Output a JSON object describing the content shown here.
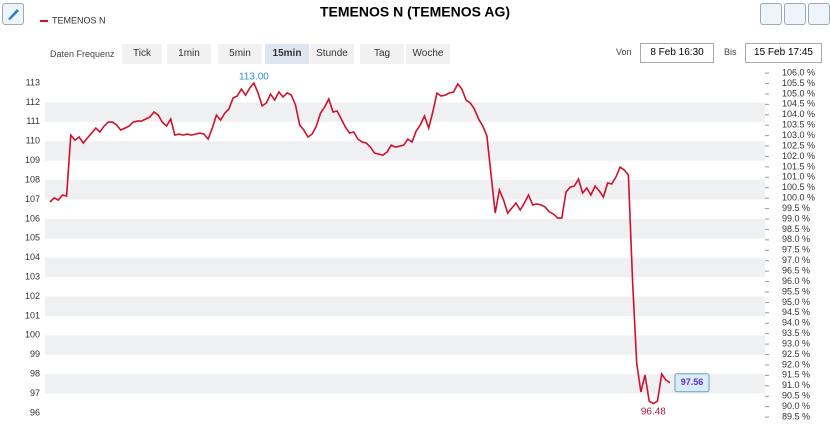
{
  "toolbar": {
    "frequency_label": "Daten Frequenz",
    "frequencies": [
      "Tick",
      "1min",
      "5min",
      "15min",
      "Stunde",
      "Tag",
      "Woche"
    ],
    "active": "15min",
    "from_label": "Von",
    "from": "8 Feb 16:30",
    "to_label": "Bis",
    "to": "15 Feb 17:45"
  },
  "chart_data": {
    "type": "line",
    "title": "TEMENOS N (TEMENOS AG)",
    "series": [
      {
        "name": "TEMENOS N",
        "color": "#d0112b",
        "values": [
          106.87,
          107.08,
          106.97,
          107.23,
          107.18,
          110.32,
          110.06,
          110.22,
          109.91,
          110.17,
          110.42,
          110.68,
          110.48,
          110.78,
          110.99,
          110.99,
          110.84,
          110.58,
          110.68,
          110.78,
          110.99,
          111.04,
          111.04,
          111.15,
          111.25,
          111.51,
          111.35,
          110.99,
          110.78,
          111.15,
          110.32,
          110.37,
          110.32,
          110.37,
          110.32,
          110.37,
          110.42,
          110.37,
          110.11,
          110.68,
          111.35,
          111.09,
          111.45,
          111.66,
          112.23,
          112.33,
          112.69,
          112.38,
          112.74,
          113.0,
          112.48,
          111.82,
          111.97,
          112.43,
          112.12,
          112.54,
          112.28,
          112.49,
          112.38,
          111.87,
          110.84,
          110.58,
          110.22,
          110.37,
          110.78,
          111.45,
          111.76,
          112.18,
          111.51,
          111.56,
          111.15,
          110.73,
          110.42,
          110.48,
          110.11,
          109.96,
          109.91,
          109.7,
          109.39,
          109.34,
          109.29,
          109.44,
          109.8,
          109.7,
          109.75,
          109.8,
          110.11,
          109.96,
          110.53,
          110.84,
          111.3,
          110.68,
          111.51,
          112.48,
          112.33,
          112.38,
          112.49,
          112.54,
          112.95,
          112.69,
          112.12,
          111.97,
          111.66,
          111.15,
          110.78,
          110.27,
          108.26,
          106.3,
          107.49,
          106.97,
          106.3,
          106.56,
          106.82,
          106.46,
          106.82,
          107.23,
          106.72,
          106.77,
          106.72,
          106.61,
          106.36,
          106.25,
          106.04,
          106.04,
          107.38,
          107.64,
          107.69,
          108.05,
          107.33,
          107.59,
          107.23,
          107.69,
          107.44,
          107.13,
          107.85,
          107.8,
          108.16,
          108.67,
          108.52,
          108.26,
          102.75,
          98.57,
          97.08,
          97.96,
          96.62,
          96.48,
          96.62,
          98.01,
          97.7,
          97.56
        ]
      }
    ],
    "annotations": [
      {
        "value": 113,
        "label": "113.00",
        "kind": "high"
      },
      {
        "value": 96.48,
        "label": "96.48",
        "kind": "low"
      },
      {
        "value": 97.56,
        "label": "97.56",
        "kind": "last"
      }
    ],
    "ylim": [
      95.5,
      113.6
    ],
    "yticks": [
      96,
      97,
      98,
      99,
      100,
      101,
      102,
      103,
      104,
      105,
      106,
      107,
      108,
      109,
      110,
      111,
      112,
      113
    ],
    "y2lim": [
      89.23,
      106.08
    ],
    "y2ticks": [
      {
        "value": 89.5,
        "label": "89.5 %"
      },
      {
        "value": 90,
        "label": "90.0 %"
      },
      {
        "value": 90.5,
        "label": "90.5 %"
      },
      {
        "value": 91,
        "label": "91.0 %"
      },
      {
        "value": 91.5,
        "label": "91.5 %"
      },
      {
        "value": 92,
        "label": "92.0 %"
      },
      {
        "value": 92.5,
        "label": "92.5 %"
      },
      {
        "value": 93,
        "label": "93.0 %"
      },
      {
        "value": 93.5,
        "label": "93.5 %"
      },
      {
        "value": 94,
        "label": "94.0 %"
      },
      {
        "value": 94.5,
        "label": "94.5 %"
      },
      {
        "value": 95,
        "label": "95.0 %"
      },
      {
        "value": 95.5,
        "label": "95.5 %"
      },
      {
        "value": 96,
        "label": "96.0 %"
      },
      {
        "value": 96.5,
        "label": "96.5 %"
      },
      {
        "value": 97,
        "label": "97.0 %"
      },
      {
        "value": 97.5,
        "label": "97.5 %"
      },
      {
        "value": 98,
        "label": "98.0 %"
      },
      {
        "value": 98.5,
        "label": "98.5 %"
      },
      {
        "value": 99,
        "label": "99.0 %"
      },
      {
        "value": 99.5,
        "label": "99.5 %"
      },
      {
        "value": 100,
        "label": "100.0 %"
      },
      {
        "value": 100.5,
        "label": "100.5 %"
      },
      {
        "value": 101,
        "label": "101.0 %"
      },
      {
        "value": 101.5,
        "label": "101.5 %"
      },
      {
        "value": 102,
        "label": "102.0 %"
      },
      {
        "value": 102.5,
        "label": "102.5 %"
      },
      {
        "value": 103,
        "label": "103.0 %"
      },
      {
        "value": 103.5,
        "label": "103.5 %"
      },
      {
        "value": 104,
        "label": "104.0 %"
      },
      {
        "value": 104.5,
        "label": "104.5 %"
      },
      {
        "value": 105,
        "label": "105.0 %"
      },
      {
        "value": 105.5,
        "label": "105.5 %"
      },
      {
        "value": 106,
        "label": "106.0 %"
      }
    ],
    "grid": true
  }
}
